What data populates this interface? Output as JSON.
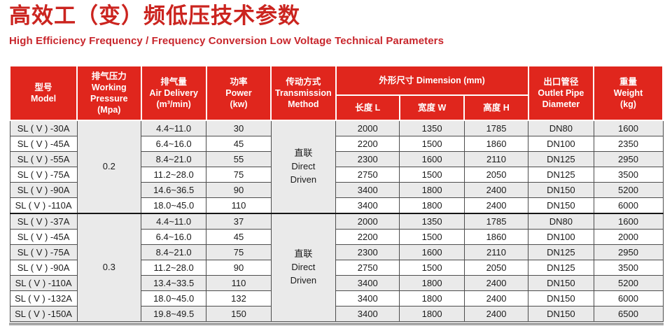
{
  "page": {
    "title": "高效工（变）频低压技术参数",
    "subtitle": "High Efficiency Frequency / Frequency Conversion Low Voltage Technical Parameters"
  },
  "colors": {
    "title_red": "#cb241f",
    "header_red": "#e0261d",
    "stripe_gray": "#eaeaea",
    "border_dark": "#4d4d4d",
    "header_text": "#ffffff"
  },
  "table": {
    "header": {
      "model": "型号\nModel",
      "pressure": "排气压力\nWorking\nPressure\n(Mpa)",
      "air_delivery": "排气量\nAir Delivery\n(m³/min)",
      "power": "功率\nPower\n(kw)",
      "transmission": "传动方式\nTransmission\nMethod",
      "dimension": "外形尺寸 Dimension (mm)",
      "length": "长度 L",
      "width": "宽度 W",
      "height": "高度 H",
      "outlet": "出口管径\nOutlet Pipe\nDiameter",
      "weight": "重量\nWeight\n(kg)"
    },
    "groups": [
      {
        "working_pressure_mpa": "0.2",
        "transmission_method": [
          "直联",
          "Direct",
          "Driven"
        ],
        "rows": [
          {
            "model": "SL ( V ) -30A",
            "air_delivery": "4.4~11.0",
            "power_kw": "30",
            "length_mm": "2000",
            "width_mm": "1350",
            "height_mm": "1785",
            "outlet_pipe": "DN80",
            "weight_kg": "1600"
          },
          {
            "model": "SL ( V ) -45A",
            "air_delivery": "6.4~16.0",
            "power_kw": "45",
            "length_mm": "2200",
            "width_mm": "1500",
            "height_mm": "1860",
            "outlet_pipe": "DN100",
            "weight_kg": "2350"
          },
          {
            "model": "SL ( V ) -55A",
            "air_delivery": "8.4~21.0",
            "power_kw": "55",
            "length_mm": "2300",
            "width_mm": "1600",
            "height_mm": "2110",
            "outlet_pipe": "DN125",
            "weight_kg": "2950"
          },
          {
            "model": "SL ( V ) -75A",
            "air_delivery": "11.2~28.0",
            "power_kw": "75",
            "length_mm": "2750",
            "width_mm": "1500",
            "height_mm": "2050",
            "outlet_pipe": "DN125",
            "weight_kg": "3500"
          },
          {
            "model": "SL ( V ) -90A",
            "air_delivery": "14.6~36.5",
            "power_kw": "90",
            "length_mm": "3400",
            "width_mm": "1800",
            "height_mm": "2400",
            "outlet_pipe": "DN150",
            "weight_kg": "5200"
          },
          {
            "model": "SL ( V ) -110A",
            "air_delivery": "18.0~45.0",
            "power_kw": "110",
            "length_mm": "3400",
            "width_mm": "1800",
            "height_mm": "2400",
            "outlet_pipe": "DN150",
            "weight_kg": "6000"
          }
        ]
      },
      {
        "working_pressure_mpa": "0.3",
        "transmission_method": [
          "直联",
          "Direct",
          "Driven"
        ],
        "rows": [
          {
            "model": "SL ( V ) -37A",
            "air_delivery": "4.4~11.0",
            "power_kw": "37",
            "length_mm": "2000",
            "width_mm": "1350",
            "height_mm": "1785",
            "outlet_pipe": "DN80",
            "weight_kg": "1600"
          },
          {
            "model": "SL ( V ) -45A",
            "air_delivery": "6.4~16.0",
            "power_kw": "45",
            "length_mm": "2200",
            "width_mm": "1500",
            "height_mm": "1860",
            "outlet_pipe": "DN100",
            "weight_kg": "2000"
          },
          {
            "model": "SL ( V ) -75A",
            "air_delivery": "8.4~21.0",
            "power_kw": "75",
            "length_mm": "2300",
            "width_mm": "1600",
            "height_mm": "2110",
            "outlet_pipe": "DN125",
            "weight_kg": "2950"
          },
          {
            "model": "SL ( V ) -90A",
            "air_delivery": "11.2~28.0",
            "power_kw": "90",
            "length_mm": "2750",
            "width_mm": "1500",
            "height_mm": "2050",
            "outlet_pipe": "DN125",
            "weight_kg": "3500"
          },
          {
            "model": "SL ( V ) -110A",
            "air_delivery": "13.4~33.5",
            "power_kw": "110",
            "length_mm": "3400",
            "width_mm": "1800",
            "height_mm": "2400",
            "outlet_pipe": "DN150",
            "weight_kg": "5200"
          },
          {
            "model": "SL ( V ) -132A",
            "air_delivery": "18.0~45.0",
            "power_kw": "132",
            "length_mm": "3400",
            "width_mm": "1800",
            "height_mm": "2400",
            "outlet_pipe": "DN150",
            "weight_kg": "6000"
          },
          {
            "model": "SL ( V ) -150A",
            "air_delivery": "19.8~49.5",
            "power_kw": "150",
            "length_mm": "3400",
            "width_mm": "1800",
            "height_mm": "2400",
            "outlet_pipe": "DN150",
            "weight_kg": "6500"
          }
        ]
      }
    ]
  }
}
